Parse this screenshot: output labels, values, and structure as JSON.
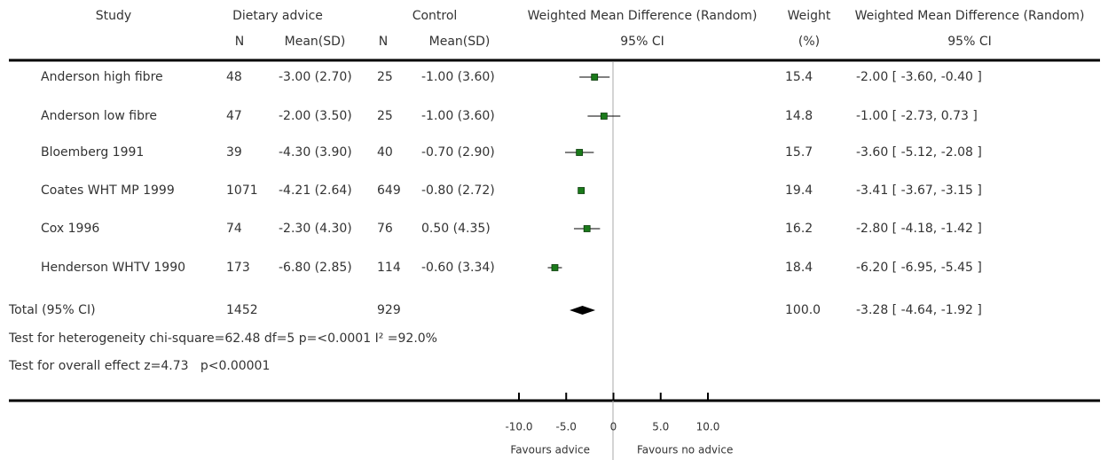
{
  "chart_data": {
    "type": "forest",
    "headers": {
      "study": "Study",
      "group1": "Dietary advice",
      "group2": "Control",
      "plot": "Weighted Mean Difference (Random)",
      "weight": "Weight",
      "effect": "Weighted Mean Difference (Random)"
    },
    "subheaders": {
      "n1": "N",
      "mean1": "Mean(SD)",
      "n2": "N",
      "mean2": "Mean(SD)",
      "plot": "95% CI",
      "weight": "(%)",
      "effect": "95% CI"
    },
    "studies": [
      {
        "name": "Anderson high fibre",
        "n1": "48",
        "mean1": "-3.00 (2.70)",
        "n2": "25",
        "mean2": "-1.00 (3.60)",
        "weight": "15.4",
        "ci_label": "-2.00 [ -3.60, -0.40 ]",
        "wmd": -2.0,
        "ci_low": -3.6,
        "ci_high": -0.4
      },
      {
        "name": "Anderson low fibre",
        "n1": "47",
        "mean1": "-2.00 (3.50)",
        "n2": "25",
        "mean2": "-1.00 (3.60)",
        "weight": "14.8",
        "ci_label": "-1.00 [ -2.73, 0.73 ]",
        "wmd": -1.0,
        "ci_low": -2.73,
        "ci_high": 0.73
      },
      {
        "name": "Bloemberg 1991",
        "n1": "39",
        "mean1": "-4.30 (3.90)",
        "n2": "40",
        "mean2": "-0.70 (2.90)",
        "weight": "15.7",
        "ci_label": "-3.60 [ -5.12, -2.08 ]",
        "wmd": -3.6,
        "ci_low": -5.12,
        "ci_high": -2.08
      },
      {
        "name": "Coates WHT MP 1999",
        "n1": "1071",
        "mean1": "-4.21 (2.64)",
        "n2": "649",
        "mean2": "-0.80 (2.72)",
        "weight": "19.4",
        "ci_label": "-3.41 [ -3.67, -3.15 ]",
        "wmd": -3.41,
        "ci_low": -3.67,
        "ci_high": -3.15
      },
      {
        "name": "Cox 1996",
        "n1": "74",
        "mean1": "-2.30 (4.30)",
        "n2": "76",
        "mean2": "0.50 (4.35)",
        "weight": "16.2",
        "ci_label": "-2.80 [ -4.18, -1.42 ]",
        "wmd": -2.8,
        "ci_low": -4.18,
        "ci_high": -1.42
      },
      {
        "name": "Henderson WHTV 1990",
        "n1": "173",
        "mean1": "-6.80 (2.85)",
        "n2": "114",
        "mean2": "-0.60 (3.34)",
        "weight": "18.4",
        "ci_label": "-6.20 [ -6.95, -5.45 ]",
        "wmd": -6.2,
        "ci_low": -6.95,
        "ci_high": -5.45
      }
    ],
    "total": {
      "name": "Total (95% CI)",
      "n1": "1452",
      "n2": "929",
      "weight": "100.0",
      "ci_label": "-3.28 [ -4.64, -1.92 ]",
      "wmd": -3.28,
      "ci_low": -4.64,
      "ci_high": -1.92
    },
    "notes": [
      "Test for heterogeneity chi-square=62.48 df=5 p=<0.0001 I² =92.0%",
      "Test for overall effect z=4.73   p<0.00001"
    ],
    "xlim": [
      -10,
      10
    ],
    "xticks": [
      {
        "value": -10,
        "label": "-10.0"
      },
      {
        "value": -5,
        "label": "-5.0"
      },
      0,
      {
        "value": 5,
        "label": "5.0"
      },
      {
        "value": 10,
        "label": "10.0"
      }
    ],
    "favours_left": "Favours advice",
    "favours_right": "Favours no advice",
    "color": "#1a7a1a"
  }
}
